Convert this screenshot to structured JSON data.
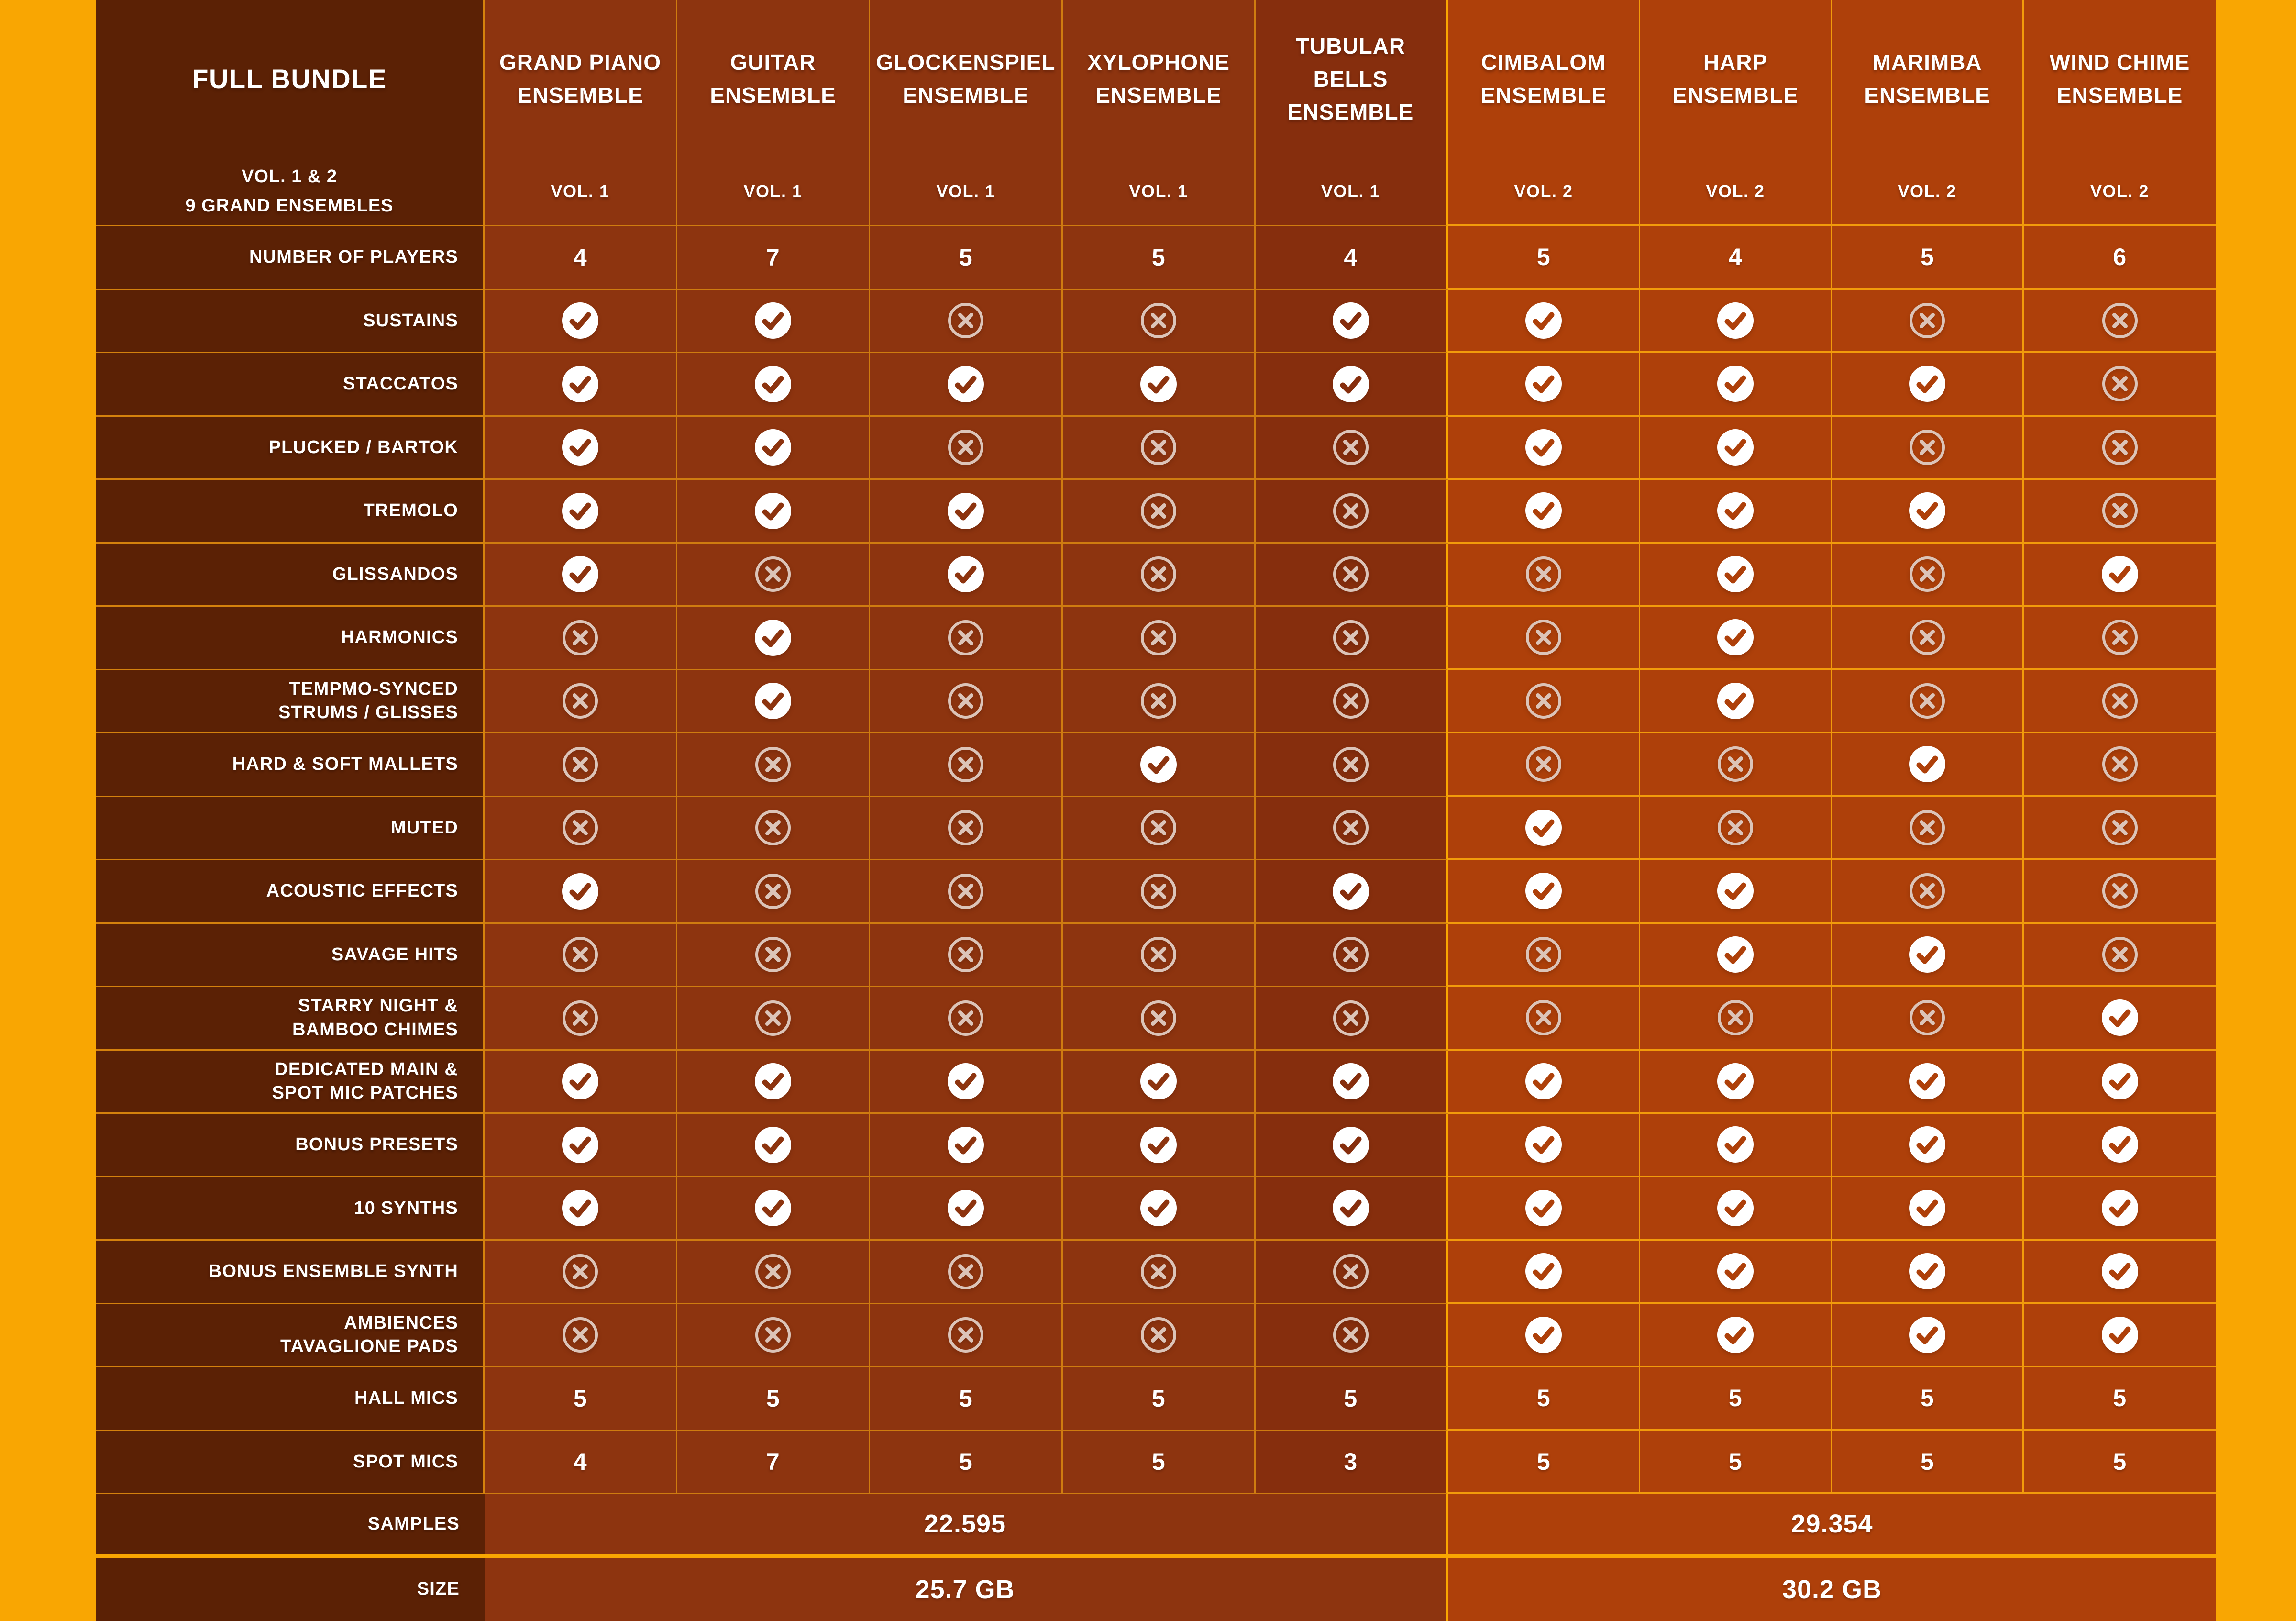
{
  "chart_data": {
    "type": "table",
    "title": "FULL BUNDLE",
    "subtitle": "VOL. 1 & 2\n9 GRAND ENSEMBLES",
    "columns": [
      {
        "name": "GRAND PIANO\nENSEMBLE",
        "vol": "VOL. 1",
        "group": 1
      },
      {
        "name": "GUITAR\nENSEMBLE",
        "vol": "VOL. 1",
        "group": 1
      },
      {
        "name": "GLOCKENSPIEL\nENSEMBLE",
        "vol": "VOL. 1",
        "group": 1
      },
      {
        "name": "XYLOPHONE\nENSEMBLE",
        "vol": "VOL. 1",
        "group": 1
      },
      {
        "name": "TUBULAR\nBELLS\nENSEMBLE",
        "vol": "VOL. 1",
        "group": 1
      },
      {
        "name": "CIMBALOM\nENSEMBLE",
        "vol": "VOL. 2",
        "group": 2
      },
      {
        "name": "HARP\nENSEMBLE",
        "vol": "VOL. 2",
        "group": 2
      },
      {
        "name": "MARIMBA\nENSEMBLE",
        "vol": "VOL. 2",
        "group": 2
      },
      {
        "name": "WIND CHIME\nENSEMBLE",
        "vol": "VOL. 2",
        "group": 2
      }
    ],
    "rows": [
      {
        "label": "NUMBER OF PLAYERS",
        "type": "number",
        "values": [
          "4",
          "7",
          "5",
          "5",
          "4",
          "5",
          "4",
          "5",
          "6"
        ]
      },
      {
        "label": "SUSTAINS",
        "type": "icon",
        "values": [
          "check",
          "check",
          "cross",
          "cross",
          "check",
          "check",
          "check",
          "cross",
          "cross"
        ]
      },
      {
        "label": "STACCATOS",
        "type": "icon",
        "values": [
          "check",
          "check",
          "check",
          "check",
          "check",
          "check",
          "check",
          "check",
          "cross"
        ]
      },
      {
        "label": "PLUCKED / BARTOK",
        "type": "icon",
        "values": [
          "check",
          "check",
          "cross",
          "cross",
          "cross",
          "check",
          "check",
          "cross",
          "cross"
        ]
      },
      {
        "label": "TREMOLO",
        "type": "icon",
        "values": [
          "check",
          "check",
          "check",
          "cross",
          "cross",
          "check",
          "check",
          "check",
          "cross"
        ]
      },
      {
        "label": "GLISSANDOS",
        "type": "icon",
        "values": [
          "check",
          "cross",
          "check",
          "cross",
          "cross",
          "cross",
          "check",
          "cross",
          "check"
        ]
      },
      {
        "label": "HARMONICS",
        "type": "icon",
        "values": [
          "cross",
          "check",
          "cross",
          "cross",
          "cross",
          "cross",
          "check",
          "cross",
          "cross"
        ]
      },
      {
        "label": "TEMPMO-SYNCED\nSTRUMS / GLISSES",
        "type": "icon",
        "values": [
          "cross",
          "check",
          "cross",
          "cross",
          "cross",
          "cross",
          "check",
          "cross",
          "cross"
        ]
      },
      {
        "label": "HARD & SOFT MALLETS",
        "type": "icon",
        "values": [
          "cross",
          "cross",
          "cross",
          "check",
          "cross",
          "cross",
          "cross",
          "check",
          "cross"
        ]
      },
      {
        "label": "MUTED",
        "type": "icon",
        "values": [
          "cross",
          "cross",
          "cross",
          "cross",
          "cross",
          "check",
          "cross",
          "cross",
          "cross"
        ]
      },
      {
        "label": "ACOUSTIC EFFECTS",
        "type": "icon",
        "values": [
          "check",
          "cross",
          "cross",
          "cross",
          "check",
          "check",
          "check",
          "cross",
          "cross"
        ]
      },
      {
        "label": "SAVAGE HITS",
        "type": "icon",
        "values": [
          "cross",
          "cross",
          "cross",
          "cross",
          "cross",
          "cross",
          "check",
          "check",
          "cross"
        ]
      },
      {
        "label": "STARRY NIGHT &\nBAMBOO CHIMES",
        "type": "icon",
        "values": [
          "cross",
          "cross",
          "cross",
          "cross",
          "cross",
          "cross",
          "cross",
          "cross",
          "check"
        ]
      },
      {
        "label": "DEDICATED MAIN &\nSPOT MIC PATCHES",
        "type": "icon",
        "values": [
          "check",
          "check",
          "check",
          "check",
          "check",
          "check",
          "check",
          "check",
          "check"
        ]
      },
      {
        "label": "BONUS PRESETS",
        "type": "icon",
        "values": [
          "check",
          "check",
          "check",
          "check",
          "check",
          "check",
          "check",
          "check",
          "check"
        ]
      },
      {
        "label": "10 SYNTHS",
        "type": "icon",
        "values": [
          "check",
          "check",
          "check",
          "check",
          "check",
          "check",
          "check",
          "check",
          "check"
        ]
      },
      {
        "label": "BONUS ENSEMBLE SYNTH",
        "type": "icon",
        "values": [
          "cross",
          "cross",
          "cross",
          "cross",
          "cross",
          "check",
          "check",
          "check",
          "check"
        ]
      },
      {
        "label": "AMBIENCES\nTAVAGLIONE PADS",
        "type": "icon",
        "values": [
          "cross",
          "cross",
          "cross",
          "cross",
          "cross",
          "check",
          "check",
          "check",
          "check"
        ]
      },
      {
        "label": "HALL MICS",
        "type": "number",
        "values": [
          "5",
          "5",
          "5",
          "5",
          "5",
          "5",
          "5",
          "5",
          "5"
        ]
      },
      {
        "label": "SPOT MICS",
        "type": "number",
        "values": [
          "4",
          "7",
          "5",
          "5",
          "3",
          "5",
          "5",
          "5",
          "5"
        ]
      },
      {
        "label": "SAMPLES",
        "type": "merged",
        "vol1": "22.595",
        "vol2": "29.354"
      },
      {
        "label": "SIZE",
        "type": "merged",
        "vol1": "25.7 GB",
        "vol2": "30.2 GB"
      }
    ],
    "icons": {
      "check": "check-icon",
      "cross": "cross-icon"
    },
    "colors": {
      "frame": "#F9A602",
      "label_column_bg": "#5B2105",
      "vol1_cell_bg": "#8D340F",
      "vol1_cell_bg_dark": "#862E0D",
      "vol2_cell_bg": "#AE400A",
      "grid_line_label": "#D5820D",
      "grid_line_vol1": "#CF7C10",
      "grid_line_vol2": "#F29B0B",
      "group_divider": "#F9A602",
      "cross_icon": "#DCC4B8",
      "text": "#FFFFFF"
    }
  }
}
